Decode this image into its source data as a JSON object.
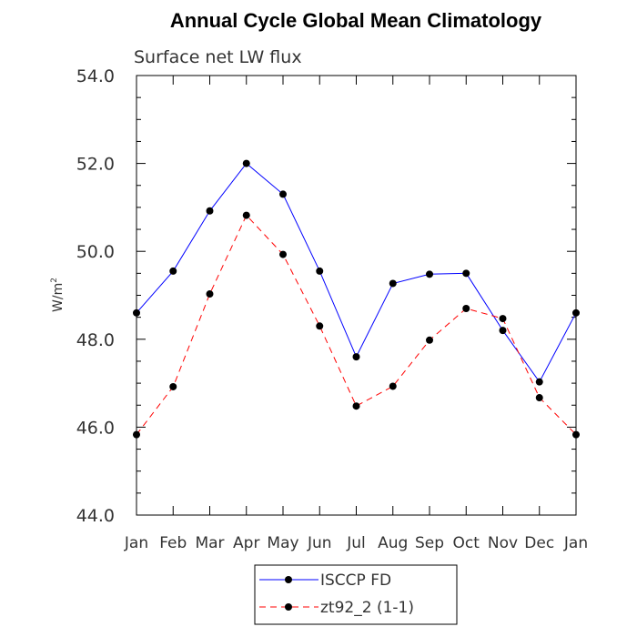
{
  "chart_data": {
    "type": "line",
    "title": "Annual Cycle Global Mean Climatology",
    "subtitle": "Surface net LW flux",
    "xlabel": "",
    "ylabel_base": "W/m",
    "ylabel_sup": "2",
    "categories": [
      "Jan",
      "Feb",
      "Mar",
      "Apr",
      "May",
      "Jun",
      "Jul",
      "Aug",
      "Sep",
      "Oct",
      "Nov",
      "Dec",
      "Jan"
    ],
    "ylim": [
      44.0,
      54.0
    ],
    "yticks": [
      44.0,
      46.0,
      48.0,
      50.0,
      52.0,
      54.0
    ],
    "ytick_labels": [
      "44.0",
      "46.0",
      "48.0",
      "50.0",
      "52.0",
      "54.0"
    ],
    "grid": false,
    "legend_position": "bottom-center",
    "series": [
      {
        "name": "ISCCP FD",
        "color": "#0000ff",
        "style": "solid",
        "values": [
          48.6,
          49.55,
          50.92,
          52.0,
          51.3,
          49.55,
          47.6,
          49.27,
          49.48,
          49.5,
          48.2,
          47.03,
          48.6
        ]
      },
      {
        "name": "zt92_2 (1-1)",
        "color": "#ff0000",
        "style": "dashed",
        "values": [
          45.83,
          46.92,
          49.03,
          50.82,
          49.93,
          48.3,
          46.48,
          46.93,
          47.98,
          48.7,
          48.47,
          46.67,
          45.83
        ]
      }
    ]
  }
}
